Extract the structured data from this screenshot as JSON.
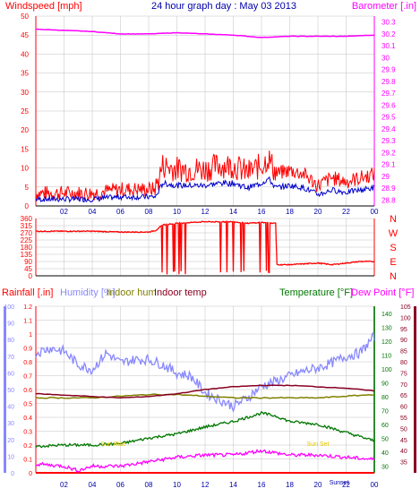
{
  "colors": {
    "wind": "#ff0000",
    "gust_avg": "#0000cc",
    "baro": "#ff00ff",
    "winddir": "#ff0000",
    "humidity": "#8888ff",
    "indoor_hum": "#808000",
    "indoor_temp": "#880022",
    "temperature": "#007700",
    "dewpoint": "#ff00ff",
    "rain": "#ff0000",
    "axis_red": "#ff0000",
    "axis_blue": "#8888ff",
    "axis_green": "#007700",
    "axis_magenta": "#ff00ff",
    "axis_dpurple": "#880022",
    "axis_navy": "#0000aa",
    "grid": "#c0c0c0"
  },
  "header": {
    "windspeed_label": "Windspeed [mph]",
    "title": "24 hour graph day : May 03 2013",
    "barometer_label": "Barometer [.in]"
  },
  "x_ticks": [
    "02",
    "04",
    "06",
    "08",
    "10",
    "12",
    "14",
    "16",
    "18",
    "20",
    "22",
    "00"
  ],
  "chart_data": [
    {
      "type": "line",
      "title": "24 hour graph day : May 03 2013",
      "series": [
        {
          "name": "Windspeed [mph]",
          "axis": "left",
          "x": [
            0,
            2,
            4,
            6,
            7.5,
            8.5,
            9,
            10,
            11,
            12,
            13,
            14,
            15,
            16,
            16.5,
            17,
            18,
            19,
            20,
            21,
            22,
            23,
            24
          ],
          "values": [
            3,
            3,
            3,
            4,
            4,
            4,
            10,
            9,
            9,
            9,
            10,
            10,
            8,
            10,
            12,
            8,
            9,
            8,
            5,
            7,
            6,
            7,
            8
          ]
        },
        {
          "name": "Barometer [.in]",
          "axis": "right",
          "x": [
            0,
            2,
            4,
            6,
            8,
            10,
            12,
            14,
            16,
            18,
            20,
            22,
            24
          ],
          "values": [
            30.24,
            30.23,
            30.22,
            30.2,
            30.2,
            30.21,
            30.2,
            30.19,
            30.17,
            30.18,
            30.18,
            30.18,
            30.19
          ]
        }
      ],
      "left_axis": {
        "ylim": [
          0,
          50
        ],
        "ticks": [
          "0",
          "5",
          "10",
          "15",
          "20",
          "25",
          "30",
          "35",
          "40",
          "45",
          "50"
        ]
      },
      "right_axis": {
        "ylim": [
          28.75,
          30.35
        ],
        "ticks": [
          "28.8",
          "28.9",
          "29",
          "29.1",
          "29.2",
          "29.3",
          "29.4",
          "29.5",
          "29.6",
          "29.7",
          "29.8",
          "29.9",
          "30",
          "30.1",
          "30.2",
          "30.3"
        ]
      }
    },
    {
      "type": "line",
      "series": [
        {
          "name": "Wind direction",
          "x": [
            0,
            2,
            4,
            6,
            8,
            8.5,
            9,
            10,
            11,
            12,
            13,
            14,
            15,
            16,
            17,
            17.1,
            18,
            19,
            20,
            21,
            22,
            23,
            24
          ],
          "values": [
            280,
            280,
            280,
            275,
            275,
            285,
            320,
            330,
            335,
            340,
            338,
            340,
            330,
            335,
            330,
            70,
            70,
            75,
            80,
            70,
            80,
            90,
            90
          ]
        }
      ],
      "left_axis": {
        "ylim": [
          0,
          360
        ],
        "ticks": [
          "0",
          "45",
          "90",
          "135",
          "180",
          "225",
          "270",
          "315",
          "360"
        ]
      },
      "right_labels": [
        "N",
        "W",
        "S",
        "E",
        "N"
      ]
    },
    {
      "type": "line",
      "series": [
        {
          "name": "Rainfall [.in]",
          "x": [
            0,
            24
          ],
          "values": [
            0,
            0
          ]
        },
        {
          "name": "Humidity [%]",
          "x": [
            0,
            1,
            2,
            3,
            4,
            5,
            6,
            7,
            8,
            9,
            10,
            11,
            12,
            13,
            14,
            15,
            16,
            17,
            18,
            19,
            20,
            21,
            22,
            23,
            24
          ],
          "values": [
            72,
            75,
            73,
            65,
            62,
            72,
            66,
            68,
            68,
            65,
            60,
            58,
            48,
            44,
            40,
            45,
            52,
            55,
            58,
            61,
            63,
            66,
            70,
            72,
            82
          ]
        },
        {
          "name": "Indoor hum",
          "x": [
            0,
            2,
            4,
            6,
            8,
            10,
            12,
            14,
            16,
            18,
            20,
            22,
            24
          ],
          "values": [
            45,
            45,
            45,
            46,
            47,
            47,
            46,
            45,
            45,
            45,
            45,
            46,
            47
          ]
        },
        {
          "name": "Indoor temp",
          "x": [
            0,
            2,
            4,
            6,
            8,
            10,
            12,
            14,
            16,
            18,
            20,
            22,
            24
          ],
          "values": [
            82,
            81,
            80,
            79,
            80,
            82,
            85,
            87,
            88,
            88,
            87,
            86,
            84
          ]
        },
        {
          "name": "Temperature [°F]",
          "x": [
            0,
            2,
            4,
            6,
            8,
            10,
            12,
            14,
            16,
            17,
            18,
            19,
            20,
            22,
            24
          ],
          "values": [
            44,
            45,
            45,
            46,
            50,
            53,
            58,
            62,
            68,
            66,
            62,
            61,
            60,
            54,
            48
          ]
        },
        {
          "name": "Dew Point [°F]",
          "x": [
            0,
            2,
            3,
            4,
            6,
            8,
            10,
            12,
            14,
            16,
            18,
            20,
            22,
            24
          ],
          "values": [
            34,
            33,
            31,
            33,
            33,
            35,
            37,
            38,
            38,
            40,
            38,
            38,
            37,
            36
          ]
        }
      ],
      "left_axis_rain": {
        "ylim": [
          0,
          1.2
        ],
        "ticks": [
          "0",
          "0.1",
          "0.2",
          "0.3",
          "0.4",
          "0.5",
          "0.6",
          "0.7",
          "0.8",
          "0.9",
          "1",
          "1.1",
          "1.2"
        ]
      },
      "left_axis_hum": {
        "ylim": [
          0,
          100
        ],
        "ticks": [
          "0",
          "10",
          "20",
          "30",
          "40",
          "50",
          "60",
          "70",
          "80",
          "90",
          "100"
        ]
      },
      "right_axis_temp": {
        "ylim": [
          25,
          145
        ],
        "ticks": [
          "30",
          "40",
          "50",
          "60",
          "70",
          "80",
          "90",
          "100",
          "110",
          "120",
          "130",
          "140"
        ]
      },
      "right_axis_dp": {
        "ylim": [
          30,
          105
        ],
        "ticks": [
          "35",
          "40",
          "45",
          "50",
          "55",
          "60",
          "65",
          "70",
          "75",
          "80",
          "85",
          "90",
          "95",
          "100",
          "105"
        ]
      },
      "annotations": [
        "Sun Rise",
        "Sun Set",
        "Sunset"
      ],
      "legend": {
        "rain": "Rainfall [.in]",
        "humidity": "Humidity [%]",
        "indoor_hum": "Indoor hum",
        "indoor_temp": "Indoor temp",
        "temperature": "Temperature [°F]",
        "dewpoint": "Dew Point [°F]"
      }
    }
  ]
}
